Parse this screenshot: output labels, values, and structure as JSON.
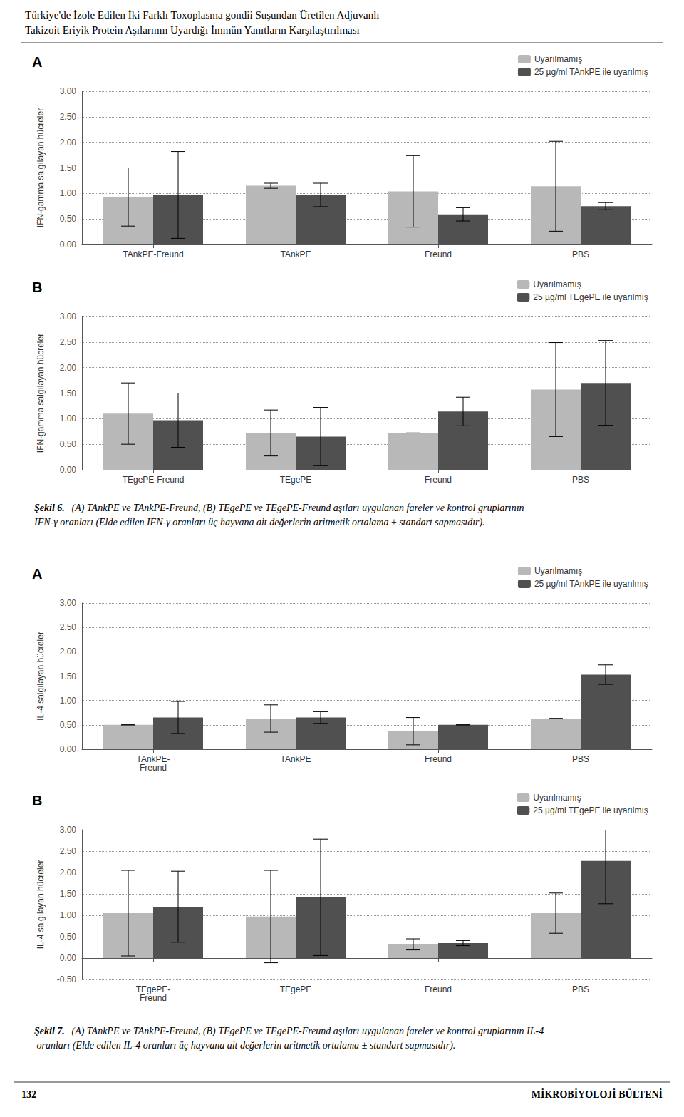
{
  "title": "Türkiye'de İzole Edilen İki Farklı Toxoplasma gondii Suşundan Üretilen Adjuvanlı",
  "subtitle": "Takizoit Eriyik Protein Aşılarının Uyardığı İmmün Yanıtların Karşılaştırılması",
  "annotations": [
    "132",
    "MİKROBİYOLOJİ BÜLTENİ"
  ],
  "chart_data": [
    {
      "type": "bar",
      "title": "A",
      "categories": [
        "TAnkPE-Freund",
        "TAnkPE",
        "Freund",
        "PBS"
      ],
      "series": [
        {
          "name": "Uyarılmamış",
          "color": "#b8b8b8",
          "values": [
            0.93,
            1.15,
            1.04,
            1.14
          ],
          "errors": [
            0.57,
            0.05,
            0.7,
            0.88
          ]
        },
        {
          "name": "25 µg/ml TAnkPE ile uyarılmış",
          "color": "#505050",
          "values": [
            0.97,
            0.97,
            0.59,
            0.75
          ],
          "errors": [
            0.85,
            0.23,
            0.13,
            0.07
          ]
        }
      ],
      "ylabel": "IFN-gamma salgılayan hücreler",
      "ylim": [
        0,
        3.0
      ],
      "yticks": [
        {
          "value": 0,
          "label": "0.00"
        },
        {
          "value": 0.5,
          "label": "0.50"
        },
        {
          "value": 1.0,
          "label": "1.00"
        },
        {
          "value": 1.5,
          "label": "1.50"
        },
        {
          "value": 2.0,
          "label": "2.00"
        },
        {
          "value": 2.5,
          "label": "2.50"
        },
        {
          "value": 3.0,
          "label": "3.00"
        }
      ],
      "grid": true,
      "legend": "upper right"
    },
    {
      "type": "bar",
      "title": "B",
      "categories": [
        "TEgePE-Freund",
        "TEgePE",
        "Freund",
        "PBS"
      ],
      "series": [
        {
          "name": "Uyarılmamış",
          "color": "#b8b8b8",
          "values": [
            1.1,
            0.72,
            0.72,
            1.57
          ],
          "errors": [
            0.6,
            0.45,
            0.0,
            0.92
          ]
        },
        {
          "name": "25 µg/ml TEgePE ile uyarılmış",
          "color": "#505050",
          "values": [
            0.97,
            0.65,
            1.14,
            1.7
          ],
          "errors": [
            0.53,
            0.57,
            0.28,
            0.83
          ]
        }
      ],
      "ylabel": "IFN-gamma salgılayan hücreler",
      "ylim": [
        0,
        3.0
      ],
      "yticks": [
        {
          "value": 0,
          "label": "0.00"
        },
        {
          "value": 0.5,
          "label": "0.50"
        },
        {
          "value": 1.0,
          "label": "1.00"
        },
        {
          "value": 1.5,
          "label": "1.50"
        },
        {
          "value": 2.0,
          "label": "2.00"
        },
        {
          "value": 2.5,
          "label": "2.50"
        },
        {
          "value": 3.0,
          "label": "3.00"
        }
      ],
      "grid": true,
      "legend": "upper right",
      "annotations": [
        "Şekil 6.",
        "(A) TAnkPE ve TAnkPE-Freund, (B) TEgePE ve TEgePE-Freund aşıları uygulanan fareler ve kontrol gruplarının IFN-γ oranları (Elde edilen IFN-γ oranları üç hayvana ait değerlerin aritmetik ortalama ± standart sapmasıdır)."
      ]
    },
    {
      "type": "bar",
      "title": "A",
      "categories": [
        "TAnkPE-\nFreund",
        "TAnkPE",
        "Freund",
        "PBS"
      ],
      "series": [
        {
          "name": "Uyarılmamış",
          "color": "#b8b8b8",
          "values": [
            0.5,
            0.63,
            0.37,
            0.63
          ],
          "errors": [
            0.0,
            0.28,
            0.28,
            0.0
          ]
        },
        {
          "name": "25 µg/ml TAnkPE ile uyarılmış",
          "color": "#505050",
          "values": [
            0.65,
            0.65,
            0.5,
            1.53
          ],
          "errors": [
            0.33,
            0.12,
            0.0,
            0.2
          ]
        }
      ],
      "ylabel": "IL-4 salgılayan hücreler",
      "ylim": [
        0,
        3.0
      ],
      "yticks": [
        {
          "value": 0,
          "label": "0.00"
        },
        {
          "value": 0.5,
          "label": "0.50"
        },
        {
          "value": 1.0,
          "label": "1.00"
        },
        {
          "value": 1.5,
          "label": "1.50"
        },
        {
          "value": 2.0,
          "label": "2.00"
        },
        {
          "value": 2.5,
          "label": "2.50"
        },
        {
          "value": 3.0,
          "label": "3.00"
        }
      ],
      "grid": true,
      "legend": "upper right"
    },
    {
      "type": "bar",
      "title": "B",
      "categories": [
        "TEgePE-\nFreund",
        "TEgePE",
        "Freund",
        "PBS"
      ],
      "series": [
        {
          "name": "Uyarılmamış",
          "color": "#b8b8b8",
          "values": [
            1.05,
            0.97,
            0.32,
            1.05
          ],
          "errors": [
            1.0,
            1.08,
            0.13,
            0.47
          ]
        },
        {
          "name": "25 µg/ml TEgePE ile uyarılmış",
          "color": "#505050",
          "values": [
            1.2,
            1.42,
            0.35,
            2.27
          ],
          "errors": [
            0.83,
            1.36,
            0.06,
            1.0
          ]
        }
      ],
      "ylabel": "IL-4 salgılayan hücreler",
      "ylim": [
        -0.5,
        3.0
      ],
      "yticks": [
        {
          "value": -0.5,
          "label": "-0.50"
        },
        {
          "value": 0,
          "label": "0.00"
        },
        {
          "value": 0.5,
          "label": "0.50"
        },
        {
          "value": 1.0,
          "label": "1.00"
        },
        {
          "value": 1.5,
          "label": "1.50"
        },
        {
          "value": 2.0,
          "label": "2.00"
        },
        {
          "value": 2.5,
          "label": "2.50"
        },
        {
          "value": 3.0,
          "label": "3.00"
        }
      ],
      "grid": true,
      "legend": "upper right",
      "annotations": [
        "Şekil 7.",
        "(A) TAnkPE ve TAnkPE-Freund, (B) TEgePE ve TEgePE-Freund aşıları uygulanan fareler ve kontrol gruplarının IL-4 oranları (Elde edilen IL-4 oranları üç hayvana ait değerlerin aritmetik ortalama ± standart sapmasıdır)."
      ]
    }
  ]
}
